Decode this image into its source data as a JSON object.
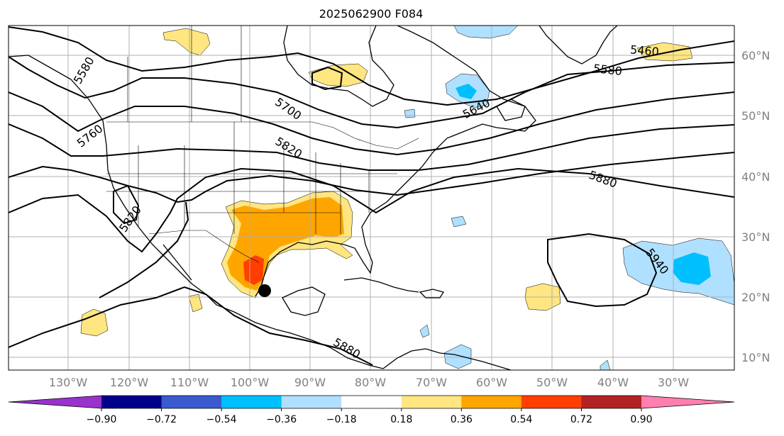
{
  "title": "2025062900 F084",
  "map": {
    "lat_labels": [
      "60°N",
      "50°N",
      "40°N",
      "30°N",
      "20°N",
      "10°N"
    ],
    "lon_labels": [
      "130°W",
      "120°W",
      "110°W",
      "100°W",
      "90°W",
      "80°W",
      "70°W",
      "60°W",
      "50°W",
      "40°W",
      "30°W"
    ],
    "contour_labels": [
      "5460",
      "5580",
      "5580",
      "5640",
      "5700",
      "5760",
      "5820",
      "5820",
      "5880",
      "5880",
      "5940"
    ],
    "storm_marker": {
      "lon": -97.2,
      "lat": 21.1
    }
  },
  "colorbar": {
    "tick_labels": [
      "−0.90",
      "−0.72",
      "−0.54",
      "−0.36",
      "−0.18",
      "0.18",
      "0.36",
      "0.54",
      "0.72",
      "0.90"
    ],
    "colors": [
      "#9932cc",
      "#00008b",
      "#3a5bd0",
      "#00bfff",
      "#b0e0ff",
      "#ffffff",
      "#ffe680",
      "#ffa500",
      "#ff3e00",
      "#b22222",
      "#ff7fb0"
    ]
  },
  "colors": {
    "fill_light_blue": "#b0e0ff",
    "fill_blue": "#00bfff",
    "fill_yellow": "#ffe680",
    "fill_orange": "#ffa500",
    "fill_red": "#ff3e00"
  }
}
